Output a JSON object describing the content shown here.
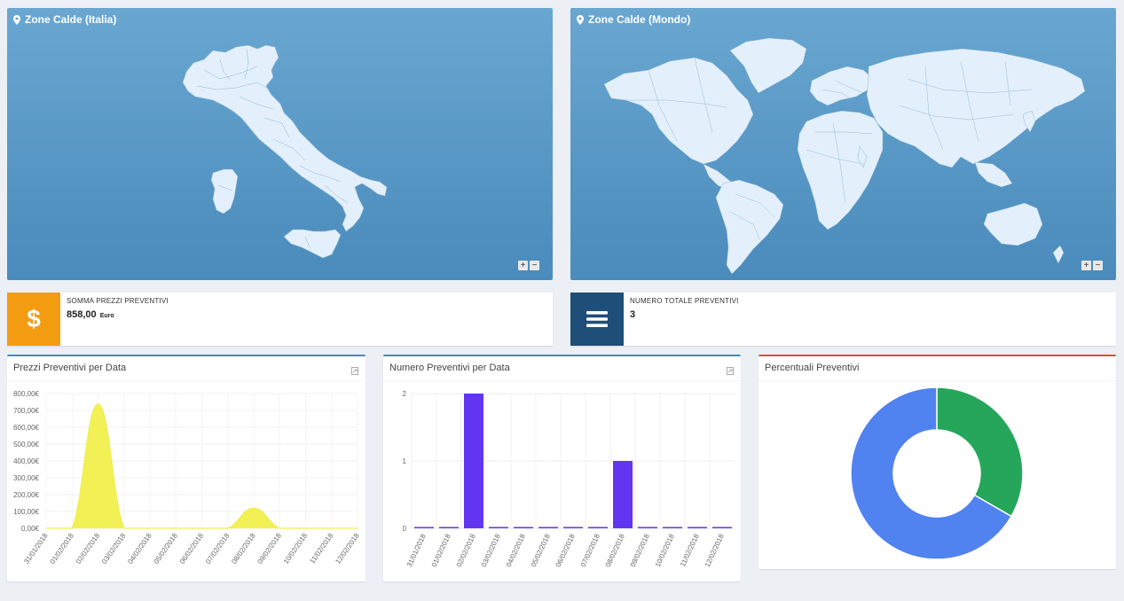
{
  "maps": {
    "italy": {
      "title": "Zone Calde (Italia)",
      "zoom_in": "+",
      "zoom_out": "−"
    },
    "world": {
      "title": "Zone Calde (Mondo)",
      "zoom_in": "+",
      "zoom_out": "−"
    }
  },
  "info_boxes": [
    {
      "label": "SOMMA PREZZI PREVENTIVI",
      "value": "858,00",
      "unit": "Euro",
      "icon": "dollar-icon",
      "color": "#f39c12"
    },
    {
      "label": "NUMERO TOTALE PREVENTIVI",
      "value": "3",
      "icon": "bars-icon",
      "color": "#1f4e79"
    }
  ],
  "charts": {
    "prices": {
      "title": "Prezzi Preventivi per Data",
      "tool_icon": "export-icon"
    },
    "counts": {
      "title": "Numero Preventivi per Data",
      "tool_icon": "export-icon"
    },
    "percent": {
      "title": "Percentuali Preventivi"
    }
  },
  "chart_data": [
    {
      "type": "area",
      "title": "Prezzi Preventivi per Data",
      "categories": [
        "31/01/2018",
        "01/02/2018",
        "02/02/2018",
        "03/02/2018",
        "04/02/2018",
        "05/02/2018",
        "06/02/2018",
        "07/02/2018",
        "08/02/2018",
        "09/02/2018",
        "10/02/2018",
        "11/02/2018",
        "12/02/2018"
      ],
      "values": [
        0,
        0,
        738,
        0,
        0,
        0,
        0,
        0,
        120,
        0,
        0,
        0,
        0
      ],
      "y_ticks": [
        "0,00€",
        "100,00€",
        "200,00€",
        "300,00€",
        "400,00€",
        "500,00€",
        "600,00€",
        "700,00€",
        "800,00€"
      ],
      "ylim": [
        0,
        800
      ],
      "color": "#f0ef4c"
    },
    {
      "type": "bar",
      "title": "Numero Preventivi per Data",
      "categories": [
        "31/01/2018",
        "01/02/2018",
        "02/02/2018",
        "03/02/2018",
        "04/02/2018",
        "05/02/2018",
        "06/02/2018",
        "07/02/2018",
        "08/02/2018",
        "09/02/2018",
        "10/02/2018",
        "11/02/2018",
        "12/02/2018"
      ],
      "values": [
        0,
        0,
        2,
        0,
        0,
        0,
        0,
        0,
        1,
        0,
        0,
        0,
        0
      ],
      "y_ticks": [
        "0",
        "1",
        "2"
      ],
      "ylim": [
        0,
        2
      ],
      "color": "#6236f0"
    },
    {
      "type": "pie",
      "title": "Percentuali Preventivi",
      "values": [
        1,
        2
      ],
      "colors": [
        "#26a65b",
        "#5082f0"
      ]
    }
  ]
}
